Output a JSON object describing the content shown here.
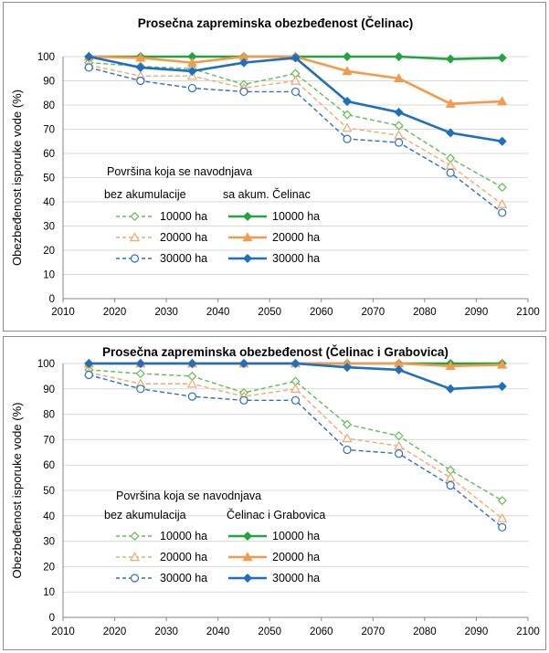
{
  "colors": {
    "green_dashed": "#66bb55",
    "orange_dashed": "#f2a86e",
    "blue_dashed": "#2e6fbf",
    "green_solid": "#22a540",
    "orange_solid": "#f39a4c",
    "blue_solid": "#1f6fc0"
  },
  "chart_data": [
    {
      "type": "line",
      "title": "Prosečna zapreminska obezbeđenost  (Čelinac)",
      "xlabel": "",
      "ylabel": "Obezbeđenost isporuke vode (%)",
      "xlim": [
        2010,
        2100
      ],
      "ylim": [
        0,
        100
      ],
      "x_ticks": [
        "2010",
        "2020",
        "2030",
        "2040",
        "2050",
        "2060",
        "2070",
        "2080",
        "2090",
        "2100"
      ],
      "y_ticks": [
        "0",
        "10",
        "20",
        "30",
        "40",
        "50",
        "60",
        "70",
        "80",
        "90",
        "100"
      ],
      "grid": "horizontal",
      "legend": {
        "header": "Površina koja se navodnjava",
        "col1_header": "bez akumulacije",
        "col2_header": "sa akum. Čelinac"
      },
      "x": [
        2015,
        2025,
        2035,
        2045,
        2055,
        2065,
        2075,
        2085,
        2095
      ],
      "series": [
        {
          "name": "10000 ha",
          "group": "without",
          "style": "dashed",
          "marker": "diamond",
          "color": "#66bb55",
          "values": [
            97.5,
            96,
            95,
            88.5,
            93,
            76,
            71.5,
            58,
            46
          ]
        },
        {
          "name": "20000 ha",
          "group": "without",
          "style": "dashed",
          "marker": "triangle",
          "color": "#f2a86e",
          "values": [
            96.5,
            92,
            92,
            87,
            90,
            70.5,
            67.5,
            55,
            39
          ]
        },
        {
          "name": "30000 ha",
          "group": "without",
          "style": "dashed",
          "marker": "circle",
          "color": "#2e6fbf",
          "values": [
            95.5,
            90,
            87,
            85.5,
            85.5,
            66,
            64.5,
            52,
            35.5
          ]
        },
        {
          "name": "10000 ha",
          "group": "with",
          "style": "solid",
          "marker": "diamond",
          "color": "#22a540",
          "values": [
            100,
            100,
            100,
            100,
            100,
            100,
            100,
            99,
            99.5
          ]
        },
        {
          "name": "20000 ha",
          "group": "with",
          "style": "solid",
          "marker": "triangle",
          "color": "#f39a4c",
          "values": [
            100,
            99.5,
            97.5,
            100,
            100,
            94,
            91,
            80.5,
            81.5
          ]
        },
        {
          "name": "30000 ha",
          "group": "with",
          "style": "solid",
          "marker": "diamond",
          "color": "#1f6fc0",
          "values": [
            100,
            95.5,
            94,
            97.5,
            99.5,
            81.5,
            77,
            68.5,
            65
          ]
        }
      ]
    },
    {
      "type": "line",
      "title": "Prosečna zapreminska obezbeđenost (Čelinac i Grabovica)",
      "xlabel": "",
      "ylabel": "Obezbeđenost isporuke vode (%)",
      "xlim": [
        2010,
        2100
      ],
      "ylim": [
        0,
        100
      ],
      "x_ticks": [
        "2010",
        "2020",
        "2030",
        "2040",
        "2050",
        "2060",
        "2070",
        "2080",
        "2090",
        "2100"
      ],
      "y_ticks": [
        "0",
        "10",
        "20",
        "30",
        "40",
        "50",
        "60",
        "70",
        "80",
        "90",
        "100"
      ],
      "grid": "horizontal",
      "legend": {
        "header": "Površina koja se navodnjava",
        "col1_header": "bez akumulacija",
        "col2_header": "Čelinac i Grabovica"
      },
      "x": [
        2015,
        2025,
        2035,
        2045,
        2055,
        2065,
        2075,
        2085,
        2095
      ],
      "series": [
        {
          "name": "10000 ha",
          "group": "without",
          "style": "dashed",
          "marker": "diamond",
          "color": "#66bb55",
          "values": [
            97.5,
            96,
            95,
            88.5,
            93,
            76,
            71.5,
            58,
            46
          ]
        },
        {
          "name": "20000 ha",
          "group": "without",
          "style": "dashed",
          "marker": "triangle",
          "color": "#f2a86e",
          "values": [
            96.5,
            92,
            92,
            87,
            90,
            70.5,
            67.5,
            55,
            39
          ]
        },
        {
          "name": "30000 ha",
          "group": "without",
          "style": "dashed",
          "marker": "circle",
          "color": "#2e6fbf",
          "values": [
            95.5,
            90,
            87,
            85.5,
            85.5,
            66,
            64.5,
            52,
            35.5
          ]
        },
        {
          "name": "10000 ha",
          "group": "with",
          "style": "solid",
          "marker": "diamond",
          "color": "#22a540",
          "values": [
            100,
            100,
            100,
            100,
            100,
            100,
            100,
            100,
            100
          ]
        },
        {
          "name": "20000 ha",
          "group": "with",
          "style": "solid",
          "marker": "triangle",
          "color": "#f39a4c",
          "values": [
            100,
            100,
            100,
            100,
            100,
            100,
            100,
            99,
            99.5
          ]
        },
        {
          "name": "30000 ha",
          "group": "with",
          "style": "solid",
          "marker": "diamond",
          "color": "#1f6fc0",
          "values": [
            100,
            100,
            100,
            100,
            100,
            98.5,
            97.5,
            90,
            91
          ]
        }
      ]
    }
  ]
}
